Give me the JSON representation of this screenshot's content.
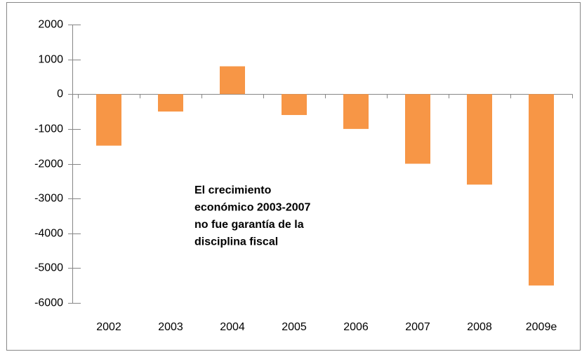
{
  "chart_data": {
    "type": "bar",
    "categories": [
      "2002",
      "2003",
      "2004",
      "2005",
      "2006",
      "2007",
      "2008",
      "2009e"
    ],
    "values": [
      -1480,
      -500,
      800,
      -600,
      -1000,
      -2000,
      -2600,
      -5500
    ],
    "color": "#f79646",
    "ylim": [
      -6000,
      2000
    ],
    "yticks": [
      -6000,
      -5000,
      -4000,
      -3000,
      -2000,
      -1000,
      0,
      1000,
      2000
    ],
    "grid": false,
    "annotation": [
      "El crecimiento",
      "económico 2003-2007",
      "no fue garantía de la",
      "disciplina fiscal"
    ]
  }
}
